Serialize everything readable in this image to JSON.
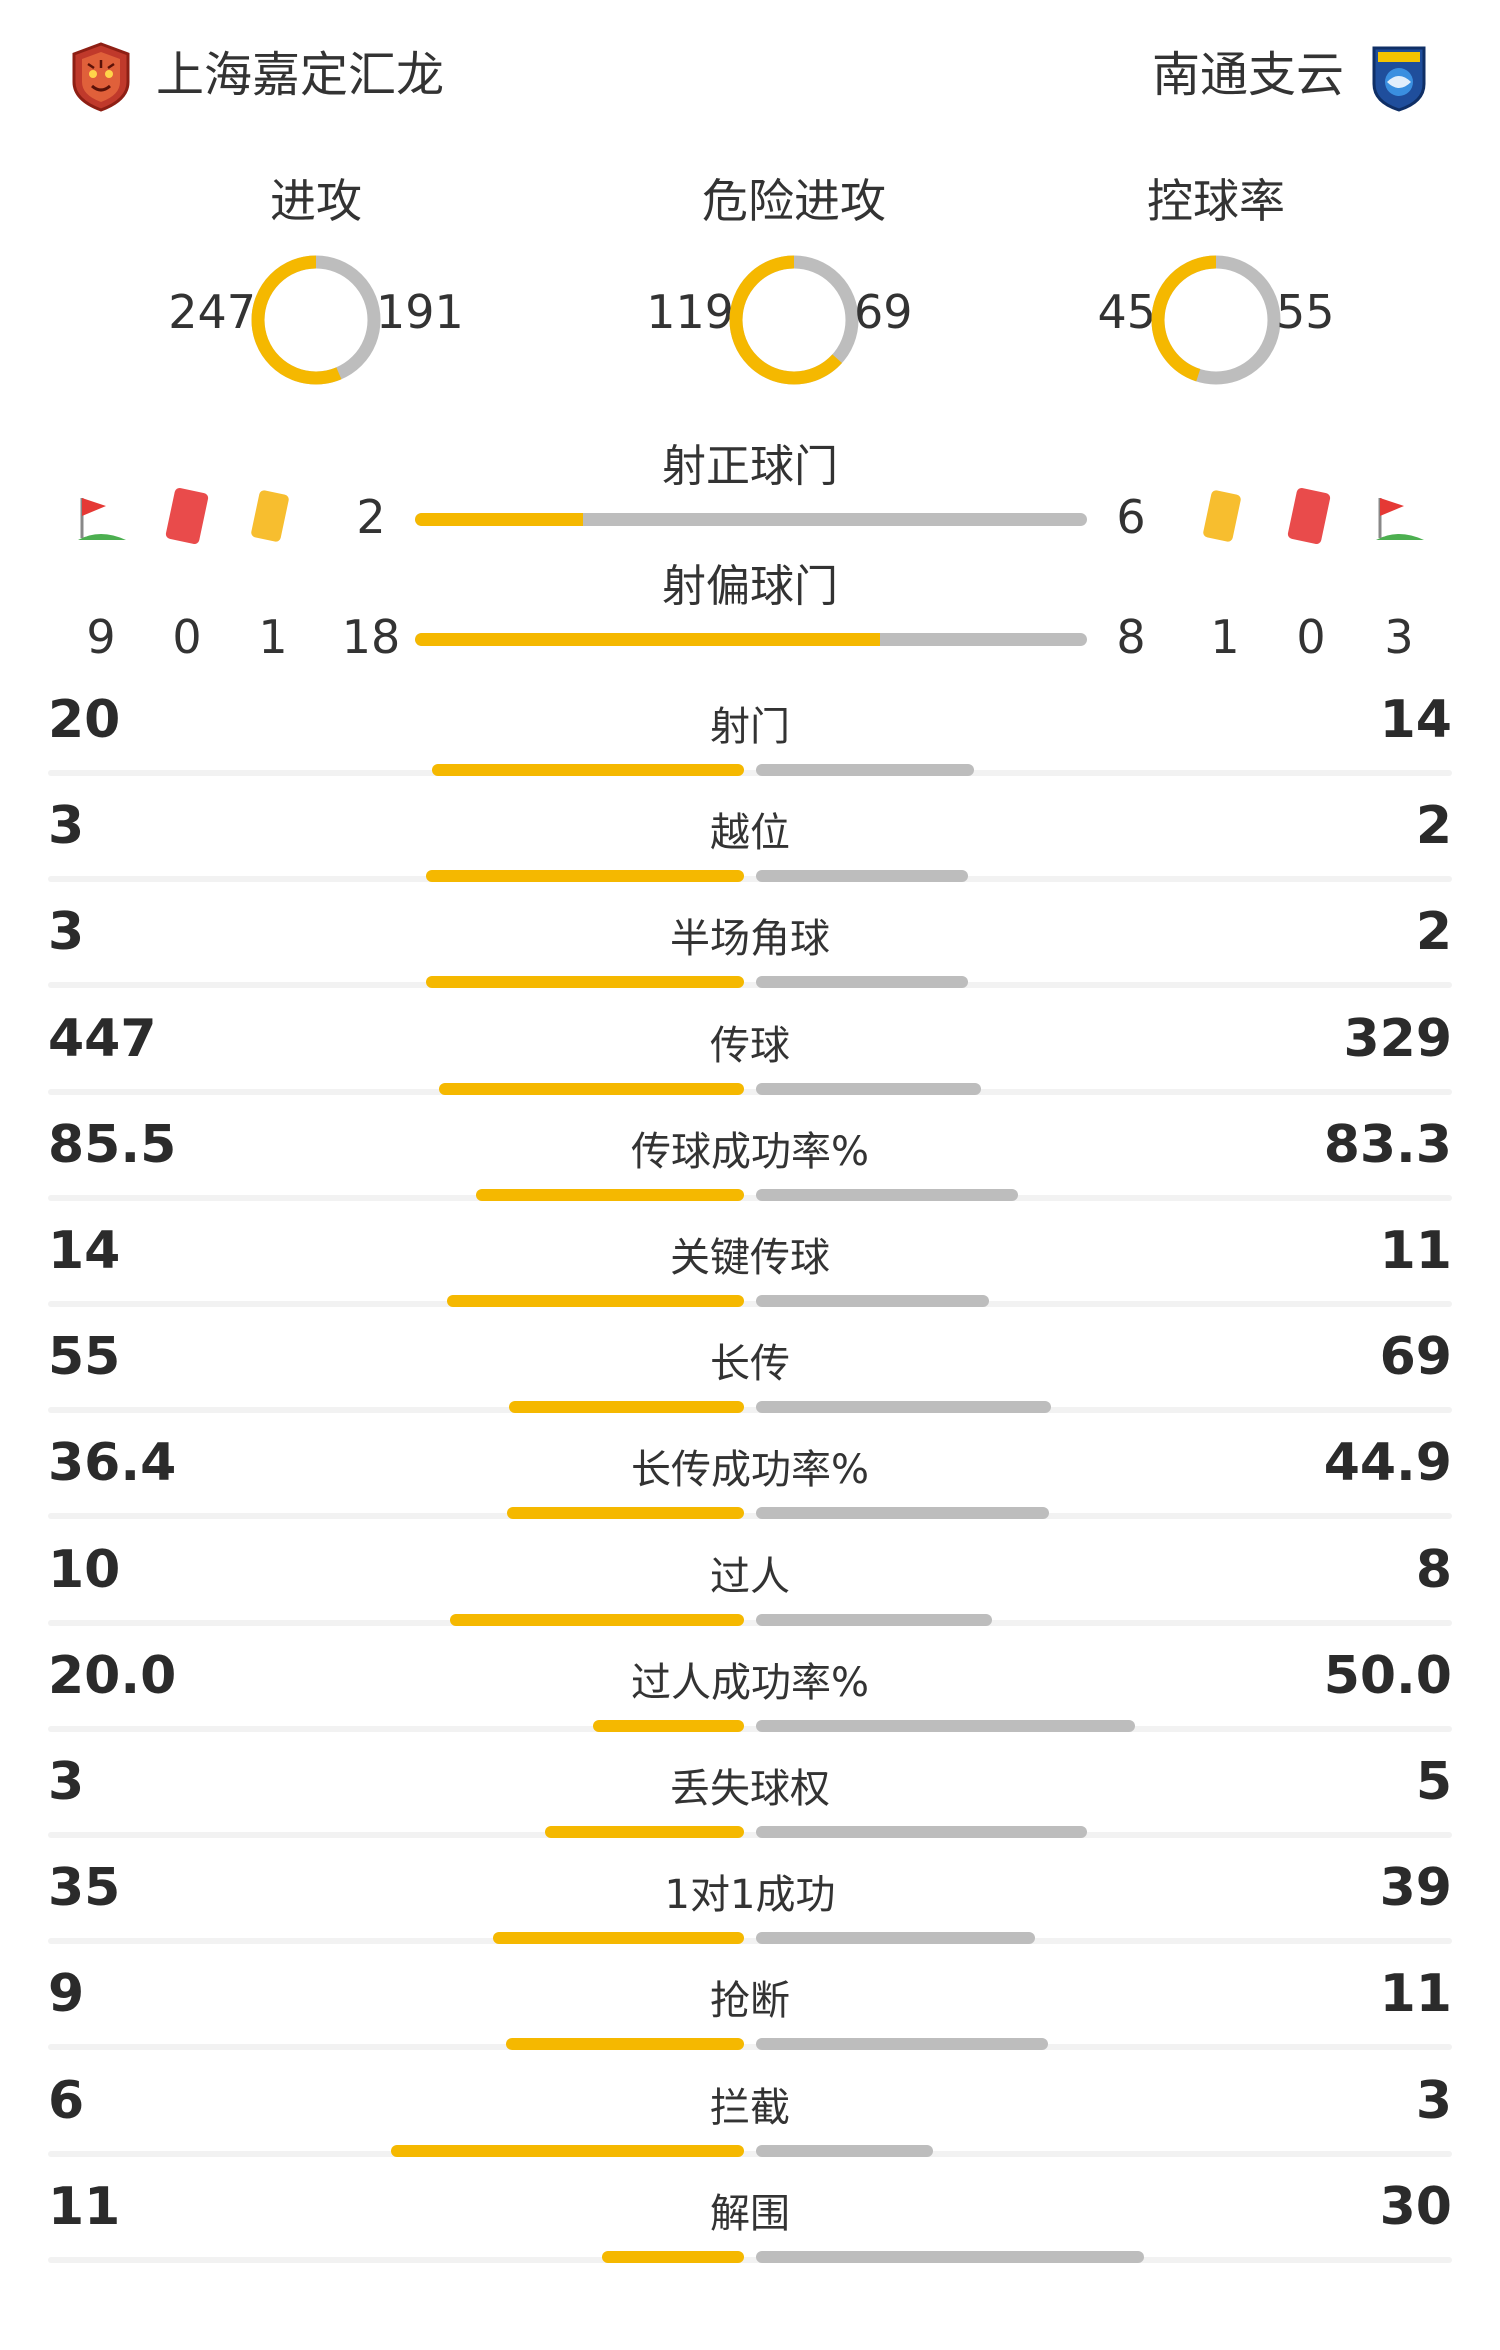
{
  "teams": {
    "home": {
      "name": "上海嘉定汇龙",
      "logo_icon": "tiger-crest-icon",
      "color": "#f5b800"
    },
    "away": {
      "name": "南通支云",
      "logo_icon": "blue-shield-crest-icon",
      "color": "#bdbdbd"
    }
  },
  "rings": [
    {
      "label": "进攻",
      "home": "247",
      "away": "191",
      "home_share": 0.564
    },
    {
      "label": "危险进攻",
      "home": "119",
      "away": "69",
      "home_share": 0.633
    },
    {
      "label": "控球率",
      "home": "45",
      "away": "55",
      "home_share": 0.45
    }
  ],
  "shots_on": {
    "label": "射正球门",
    "home": "2",
    "away": "6",
    "home_share": 0.25
  },
  "shots_off": {
    "label": "射偏球门",
    "home": "18",
    "away": "8",
    "home_share": 0.692
  },
  "discipline": {
    "icons": [
      "corner-flag-icon",
      "red-card-icon",
      "yellow-card-icon"
    ],
    "home": {
      "corners": "9",
      "red": "0",
      "yellow": "1"
    },
    "away": {
      "yellow": "1",
      "red": "0",
      "corners": "3"
    }
  },
  "stats": [
    {
      "label": "射门",
      "home": "20",
      "away": "14",
      "hv": 20,
      "av": 14
    },
    {
      "label": "越位",
      "home": "3",
      "away": "2",
      "hv": 3,
      "av": 2
    },
    {
      "label": "半场角球",
      "home": "3",
      "away": "2",
      "hv": 3,
      "av": 2
    },
    {
      "label": "传球",
      "home": "447",
      "away": "329",
      "hv": 447,
      "av": 329
    },
    {
      "label": "传球成功率%",
      "home": "85.5",
      "away": "83.3",
      "hv": 85.5,
      "av": 83.3
    },
    {
      "label": "关键传球",
      "home": "14",
      "away": "11",
      "hv": 14,
      "av": 11
    },
    {
      "label": "长传",
      "home": "55",
      "away": "69",
      "hv": 55,
      "av": 69
    },
    {
      "label": "长传成功率%",
      "home": "36.4",
      "away": "44.9",
      "hv": 36.4,
      "av": 44.9
    },
    {
      "label": "过人",
      "home": "10",
      "away": "8",
      "hv": 10,
      "av": 8
    },
    {
      "label": "过人成功率%",
      "home": "20.0",
      "away": "50.0",
      "hv": 20.0,
      "av": 50.0
    },
    {
      "label": "丢失球权",
      "home": "3",
      "away": "5",
      "hv": 3,
      "av": 5
    },
    {
      "label": "1对1成功",
      "home": "35",
      "away": "39",
      "hv": 35,
      "av": 39
    },
    {
      "label": "抢断",
      "home": "9",
      "away": "11",
      "hv": 9,
      "av": 11
    },
    {
      "label": "拦截",
      "home": "6",
      "away": "3",
      "hv": 6,
      "av": 3
    },
    {
      "label": "解围",
      "home": "11",
      "away": "30",
      "hv": 11,
      "av": 30
    }
  ]
}
